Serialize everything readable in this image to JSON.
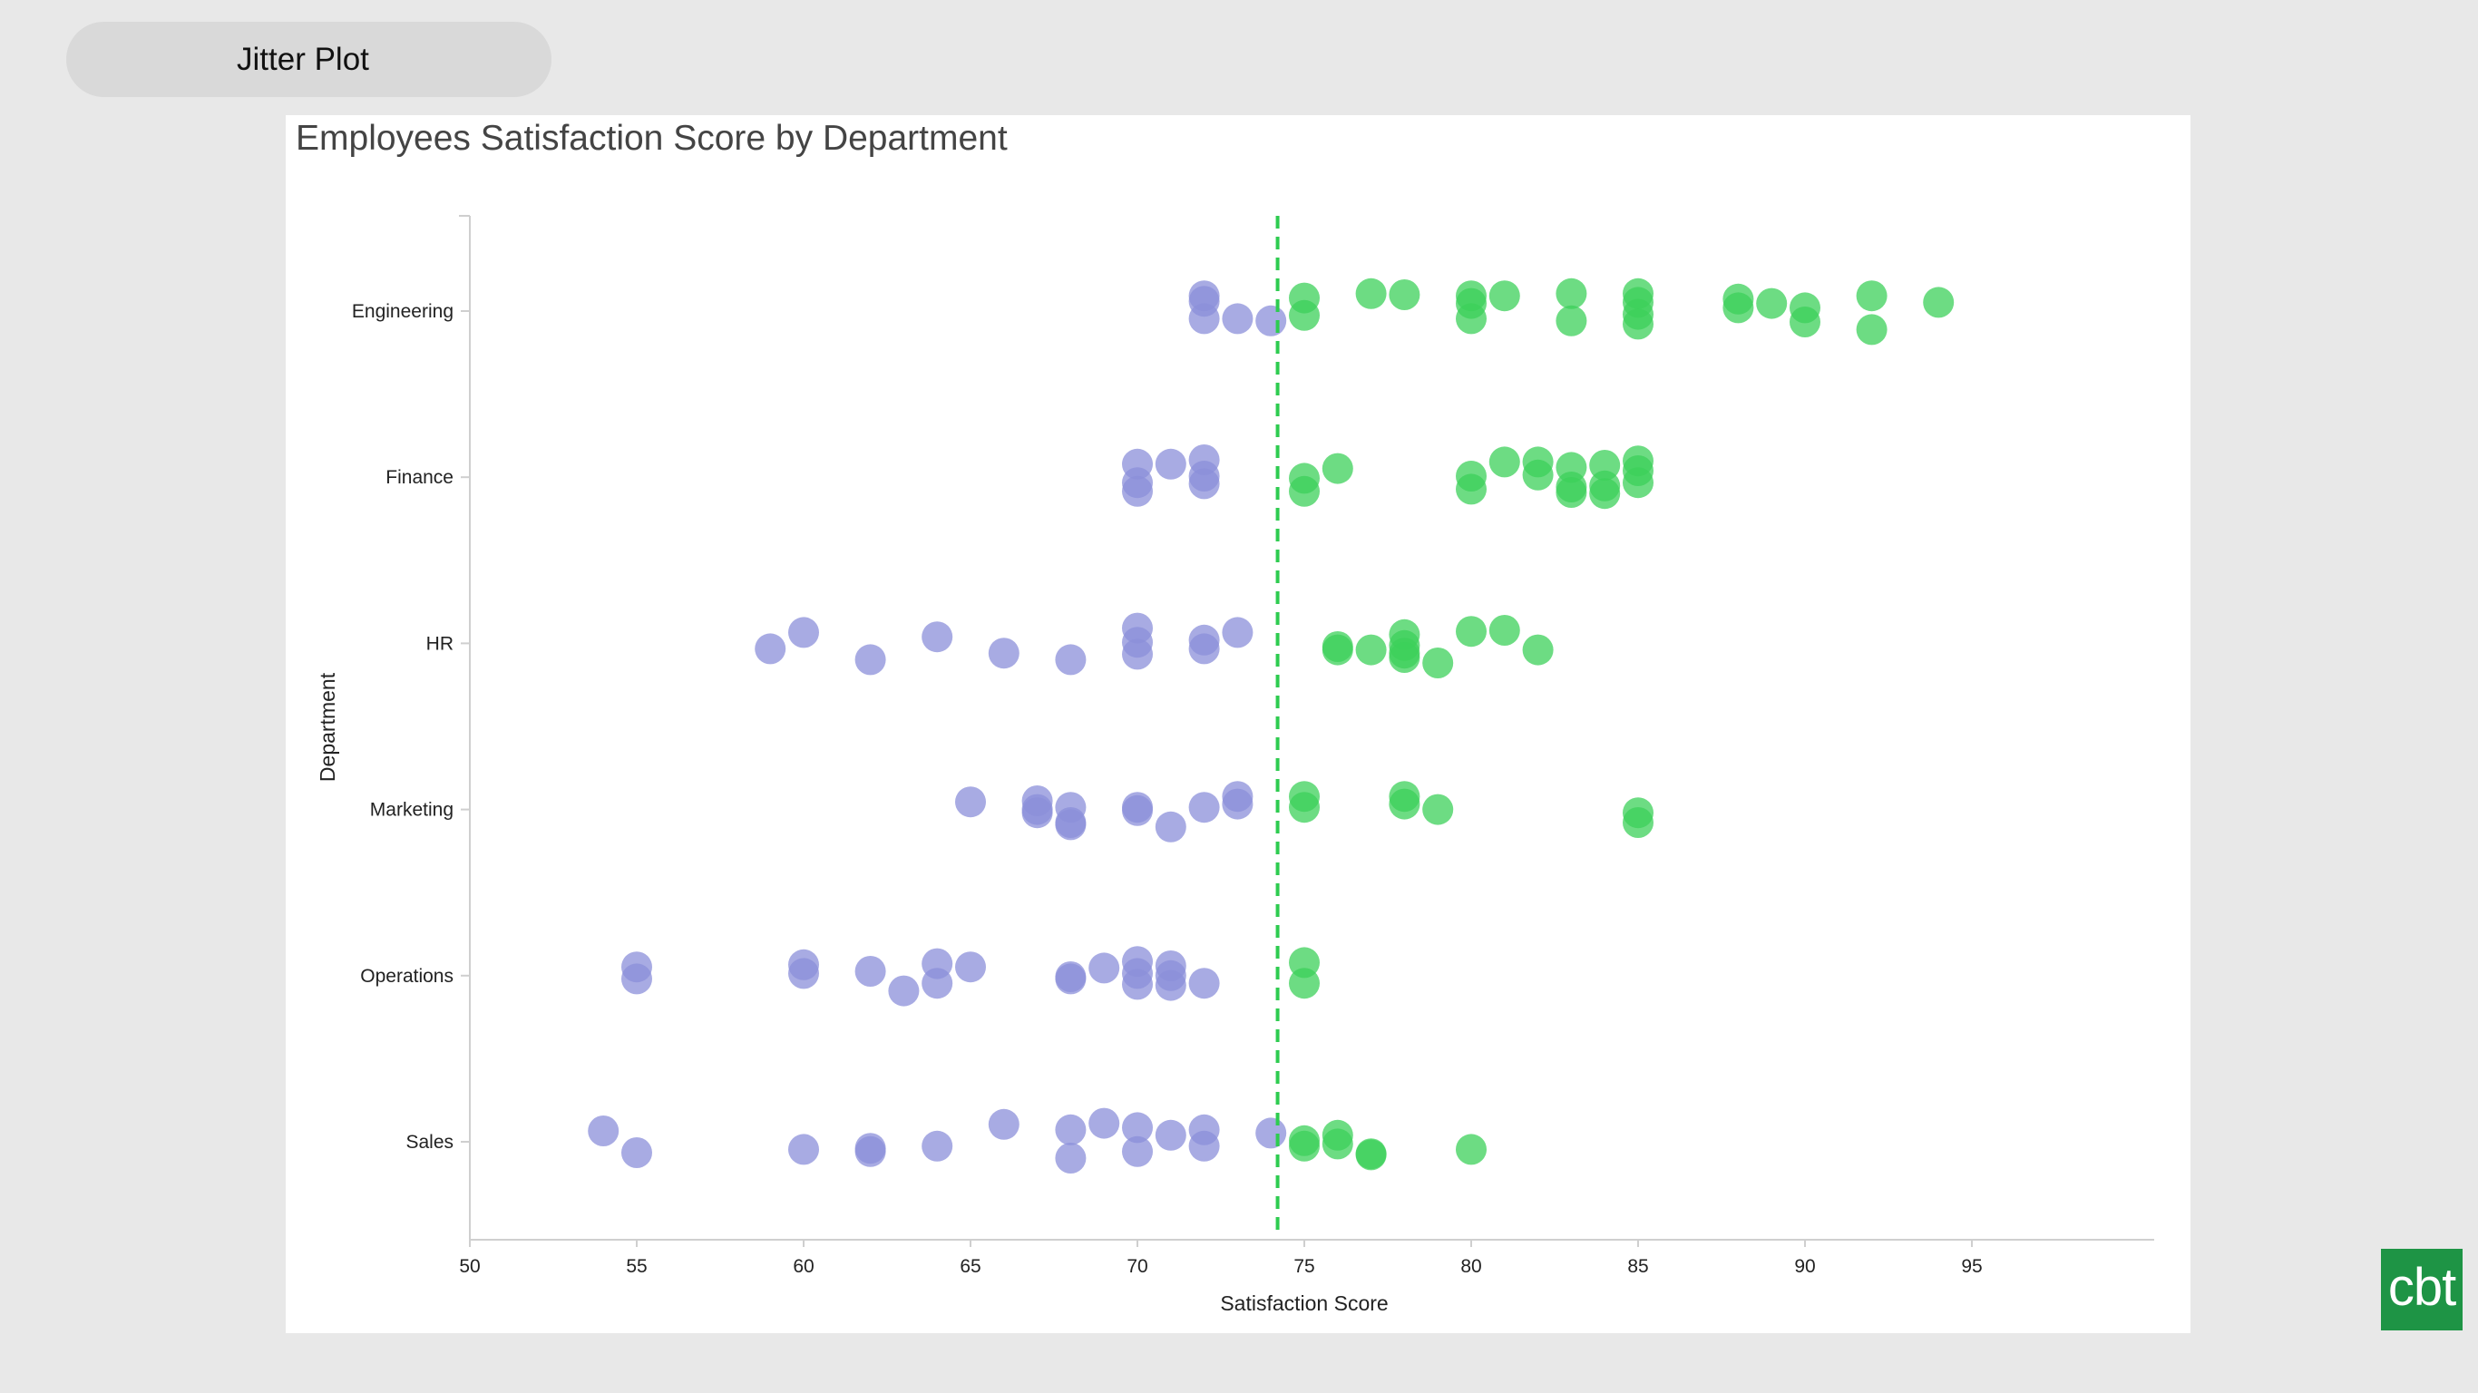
{
  "tab": {
    "label": "Jitter Plot"
  },
  "logo": {
    "text": "cbt"
  },
  "colors": {
    "below": "#8b8fd9",
    "above": "#3cd05a",
    "reference": "#2ecc50"
  },
  "chart_data": {
    "type": "scatter",
    "title": "Employees Satisfaction Score by Department",
    "xlabel": "Satisfaction Score",
    "ylabel": "Department",
    "xlim": [
      50,
      100
    ],
    "x_ticks": [
      50,
      55,
      60,
      65,
      70,
      75,
      80,
      85,
      90,
      95
    ],
    "categories": [
      "Engineering",
      "Finance",
      "HR",
      "Marketing",
      "Operations",
      "Sales"
    ],
    "reference_line": {
      "x": 74.2,
      "style": "dashed"
    },
    "color_rule": "below reference = blue, at or above = green",
    "grid": false,
    "legend": "none",
    "points": [
      {
        "category": "Engineering",
        "x": 72,
        "jitter": 0.14
      },
      {
        "category": "Engineering",
        "x": 72,
        "jitter": 0.09
      },
      {
        "category": "Engineering",
        "x": 72,
        "jitter": -0.07
      },
      {
        "category": "Engineering",
        "x": 73,
        "jitter": -0.07
      },
      {
        "category": "Engineering",
        "x": 74,
        "jitter": -0.09
      },
      {
        "category": "Engineering",
        "x": 75,
        "jitter": 0.12
      },
      {
        "category": "Engineering",
        "x": 75,
        "jitter": -0.04
      },
      {
        "category": "Engineering",
        "x": 77,
        "jitter": 0.16
      },
      {
        "category": "Engineering",
        "x": 78,
        "jitter": 0.15
      },
      {
        "category": "Engineering",
        "x": 80,
        "jitter": 0.14
      },
      {
        "category": "Engineering",
        "x": 80,
        "jitter": 0.07
      },
      {
        "category": "Engineering",
        "x": 80,
        "jitter": -0.07
      },
      {
        "category": "Engineering",
        "x": 81,
        "jitter": 0.14
      },
      {
        "category": "Engineering",
        "x": 83,
        "jitter": 0.16
      },
      {
        "category": "Engineering",
        "x": 83,
        "jitter": -0.09
      },
      {
        "category": "Engineering",
        "x": 85,
        "jitter": 0.16
      },
      {
        "category": "Engineering",
        "x": 85,
        "jitter": 0.08
      },
      {
        "category": "Engineering",
        "x": 85,
        "jitter": -0.03
      },
      {
        "category": "Engineering",
        "x": 85,
        "jitter": -0.12
      },
      {
        "category": "Engineering",
        "x": 88,
        "jitter": 0.11
      },
      {
        "category": "Engineering",
        "x": 88,
        "jitter": 0.03
      },
      {
        "category": "Engineering",
        "x": 89,
        "jitter": 0.07
      },
      {
        "category": "Engineering",
        "x": 90,
        "jitter": 0.03
      },
      {
        "category": "Engineering",
        "x": 90,
        "jitter": -0.1
      },
      {
        "category": "Engineering",
        "x": 92,
        "jitter": 0.14
      },
      {
        "category": "Engineering",
        "x": 92,
        "jitter": -0.17
      },
      {
        "category": "Engineering",
        "x": 94,
        "jitter": 0.08
      },
      {
        "category": "Finance",
        "x": 70,
        "jitter": 0.12
      },
      {
        "category": "Finance",
        "x": 70,
        "jitter": -0.05
      },
      {
        "category": "Finance",
        "x": 70,
        "jitter": -0.13
      },
      {
        "category": "Finance",
        "x": 71,
        "jitter": 0.12
      },
      {
        "category": "Finance",
        "x": 72,
        "jitter": 0.16
      },
      {
        "category": "Finance",
        "x": 72,
        "jitter": 0.01
      },
      {
        "category": "Finance",
        "x": 72,
        "jitter": -0.06
      },
      {
        "category": "Finance",
        "x": 75,
        "jitter": -0.01
      },
      {
        "category": "Finance",
        "x": 75,
        "jitter": -0.13
      },
      {
        "category": "Finance",
        "x": 76,
        "jitter": 0.08
      },
      {
        "category": "Finance",
        "x": 80,
        "jitter": 0.01
      },
      {
        "category": "Finance",
        "x": 80,
        "jitter": -0.11
      },
      {
        "category": "Finance",
        "x": 81,
        "jitter": 0.14
      },
      {
        "category": "Finance",
        "x": 82,
        "jitter": 0.14
      },
      {
        "category": "Finance",
        "x": 82,
        "jitter": 0.02
      },
      {
        "category": "Finance",
        "x": 83,
        "jitter": 0.09
      },
      {
        "category": "Finance",
        "x": 83,
        "jitter": -0.09
      },
      {
        "category": "Finance",
        "x": 83,
        "jitter": -0.14
      },
      {
        "category": "Finance",
        "x": 84,
        "jitter": 0.11
      },
      {
        "category": "Finance",
        "x": 84,
        "jitter": -0.08
      },
      {
        "category": "Finance",
        "x": 84,
        "jitter": -0.15
      },
      {
        "category": "Finance",
        "x": 85,
        "jitter": 0.15
      },
      {
        "category": "Finance",
        "x": 85,
        "jitter": 0.06
      },
      {
        "category": "Finance",
        "x": 85,
        "jitter": -0.05
      },
      {
        "category": "HR",
        "x": 59,
        "jitter": -0.05
      },
      {
        "category": "HR",
        "x": 60,
        "jitter": 0.1
      },
      {
        "category": "HR",
        "x": 62,
        "jitter": -0.15
      },
      {
        "category": "HR",
        "x": 64,
        "jitter": 0.06
      },
      {
        "category": "HR",
        "x": 66,
        "jitter": -0.09
      },
      {
        "category": "HR",
        "x": 68,
        "jitter": -0.15
      },
      {
        "category": "HR",
        "x": 70,
        "jitter": 0.14
      },
      {
        "category": "HR",
        "x": 70,
        "jitter": 0.01
      },
      {
        "category": "HR",
        "x": 70,
        "jitter": -0.1
      },
      {
        "category": "HR",
        "x": 72,
        "jitter": 0.03
      },
      {
        "category": "HR",
        "x": 72,
        "jitter": -0.05
      },
      {
        "category": "HR",
        "x": 73,
        "jitter": 0.1
      },
      {
        "category": "HR",
        "x": 76,
        "jitter": -0.03
      },
      {
        "category": "HR",
        "x": 76,
        "jitter": -0.06
      },
      {
        "category": "HR",
        "x": 77,
        "jitter": -0.06
      },
      {
        "category": "HR",
        "x": 78,
        "jitter": 0.08
      },
      {
        "category": "HR",
        "x": 78,
        "jitter": -0.02
      },
      {
        "category": "HR",
        "x": 78,
        "jitter": -0.09
      },
      {
        "category": "HR",
        "x": 78,
        "jitter": -0.13
      },
      {
        "category": "HR",
        "x": 79,
        "jitter": -0.18
      },
      {
        "category": "HR",
        "x": 80,
        "jitter": 0.11
      },
      {
        "category": "HR",
        "x": 81,
        "jitter": 0.12
      },
      {
        "category": "HR",
        "x": 82,
        "jitter": -0.06
      },
      {
        "category": "Marketing",
        "x": 65,
        "jitter": 0.07
      },
      {
        "category": "Marketing",
        "x": 67,
        "jitter": 0.08
      },
      {
        "category": "Marketing",
        "x": 67,
        "jitter": 0.0
      },
      {
        "category": "Marketing",
        "x": 67,
        "jitter": -0.03
      },
      {
        "category": "Marketing",
        "x": 68,
        "jitter": 0.02
      },
      {
        "category": "Marketing",
        "x": 68,
        "jitter": -0.12
      },
      {
        "category": "Marketing",
        "x": 68,
        "jitter": -0.14
      },
      {
        "category": "Marketing",
        "x": 70,
        "jitter": 0.02
      },
      {
        "category": "Marketing",
        "x": 70,
        "jitter": -0.01
      },
      {
        "category": "Marketing",
        "x": 71,
        "jitter": -0.16
      },
      {
        "category": "Marketing",
        "x": 72,
        "jitter": 0.02
      },
      {
        "category": "Marketing",
        "x": 73,
        "jitter": 0.12
      },
      {
        "category": "Marketing",
        "x": 73,
        "jitter": 0.05
      },
      {
        "category": "Marketing",
        "x": 75,
        "jitter": 0.12
      },
      {
        "category": "Marketing",
        "x": 75,
        "jitter": 0.02
      },
      {
        "category": "Marketing",
        "x": 78,
        "jitter": 0.12
      },
      {
        "category": "Marketing",
        "x": 78,
        "jitter": 0.05
      },
      {
        "category": "Marketing",
        "x": 79,
        "jitter": 0.0
      },
      {
        "category": "Marketing",
        "x": 85,
        "jitter": -0.03
      },
      {
        "category": "Marketing",
        "x": 85,
        "jitter": -0.12
      },
      {
        "category": "Operations",
        "x": 55,
        "jitter": 0.08
      },
      {
        "category": "Operations",
        "x": 55,
        "jitter": -0.03
      },
      {
        "category": "Operations",
        "x": 60,
        "jitter": 0.1
      },
      {
        "category": "Operations",
        "x": 60,
        "jitter": 0.02
      },
      {
        "category": "Operations",
        "x": 62,
        "jitter": 0.04
      },
      {
        "category": "Operations",
        "x": 63,
        "jitter": -0.14
      },
      {
        "category": "Operations",
        "x": 64,
        "jitter": 0.11
      },
      {
        "category": "Operations",
        "x": 64,
        "jitter": -0.07
      },
      {
        "category": "Operations",
        "x": 65,
        "jitter": 0.08
      },
      {
        "category": "Operations",
        "x": 68,
        "jitter": -0.01
      },
      {
        "category": "Operations",
        "x": 68,
        "jitter": -0.03
      },
      {
        "category": "Operations",
        "x": 69,
        "jitter": 0.07
      },
      {
        "category": "Operations",
        "x": 70,
        "jitter": 0.13
      },
      {
        "category": "Operations",
        "x": 70,
        "jitter": 0.02
      },
      {
        "category": "Operations",
        "x": 70,
        "jitter": -0.08
      },
      {
        "category": "Operations",
        "x": 71,
        "jitter": 0.09
      },
      {
        "category": "Operations",
        "x": 71,
        "jitter": 0.0
      },
      {
        "category": "Operations",
        "x": 71,
        "jitter": -0.09
      },
      {
        "category": "Operations",
        "x": 72,
        "jitter": -0.07
      },
      {
        "category": "Operations",
        "x": 75,
        "jitter": 0.12
      },
      {
        "category": "Operations",
        "x": 75,
        "jitter": -0.07
      },
      {
        "category": "Sales",
        "x": 54,
        "jitter": 0.1
      },
      {
        "category": "Sales",
        "x": 55,
        "jitter": -0.1
      },
      {
        "category": "Sales",
        "x": 60,
        "jitter": -0.07
      },
      {
        "category": "Sales",
        "x": 62,
        "jitter": -0.06
      },
      {
        "category": "Sales",
        "x": 62,
        "jitter": -0.09
      },
      {
        "category": "Sales",
        "x": 64,
        "jitter": -0.04
      },
      {
        "category": "Sales",
        "x": 66,
        "jitter": 0.16
      },
      {
        "category": "Sales",
        "x": 68,
        "jitter": 0.11
      },
      {
        "category": "Sales",
        "x": 68,
        "jitter": -0.15
      },
      {
        "category": "Sales",
        "x": 69,
        "jitter": 0.17
      },
      {
        "category": "Sales",
        "x": 70,
        "jitter": 0.13
      },
      {
        "category": "Sales",
        "x": 70,
        "jitter": -0.09
      },
      {
        "category": "Sales",
        "x": 71,
        "jitter": 0.06
      },
      {
        "category": "Sales",
        "x": 72,
        "jitter": 0.11
      },
      {
        "category": "Sales",
        "x": 72,
        "jitter": -0.04
      },
      {
        "category": "Sales",
        "x": 74,
        "jitter": 0.08
      },
      {
        "category": "Sales",
        "x": 75,
        "jitter": 0.01
      },
      {
        "category": "Sales",
        "x": 75,
        "jitter": -0.04
      },
      {
        "category": "Sales",
        "x": 76,
        "jitter": 0.06
      },
      {
        "category": "Sales",
        "x": 76,
        "jitter": -0.02
      },
      {
        "category": "Sales",
        "x": 77,
        "jitter": -0.11
      },
      {
        "category": "Sales",
        "x": 77,
        "jitter": -0.12
      },
      {
        "category": "Sales",
        "x": 80,
        "jitter": -0.07
      }
    ]
  }
}
